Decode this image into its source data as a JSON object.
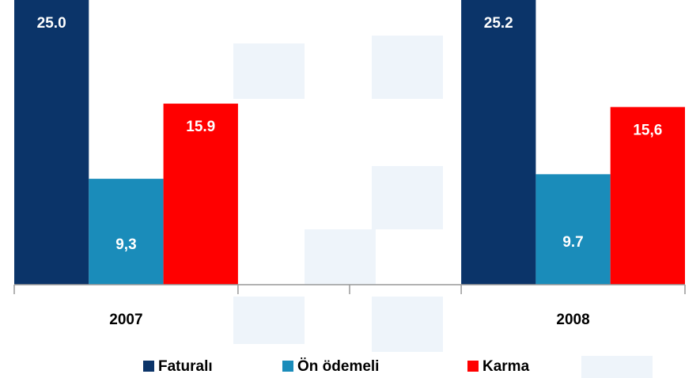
{
  "chart_data": {
    "type": "bar",
    "categories": [
      "2007",
      "2008"
    ],
    "series": [
      {
        "name": "Faturalı",
        "color": "#0b3469",
        "values": [
          25.0,
          25.2
        ],
        "value_labels": [
          "25.0",
          "25.2"
        ]
      },
      {
        "name": "Ön ödemeli",
        "color": "#1a8cba",
        "values": [
          9.3,
          9.7
        ],
        "value_labels": [
          "9,3",
          "9.7"
        ]
      },
      {
        "name": "Karma",
        "color": "#ff0000",
        "values": [
          15.9,
          15.6
        ],
        "value_labels": [
          "15.9",
          "15,6"
        ]
      }
    ],
    "ylim": [
      0,
      25
    ],
    "legend": "bottom"
  }
}
